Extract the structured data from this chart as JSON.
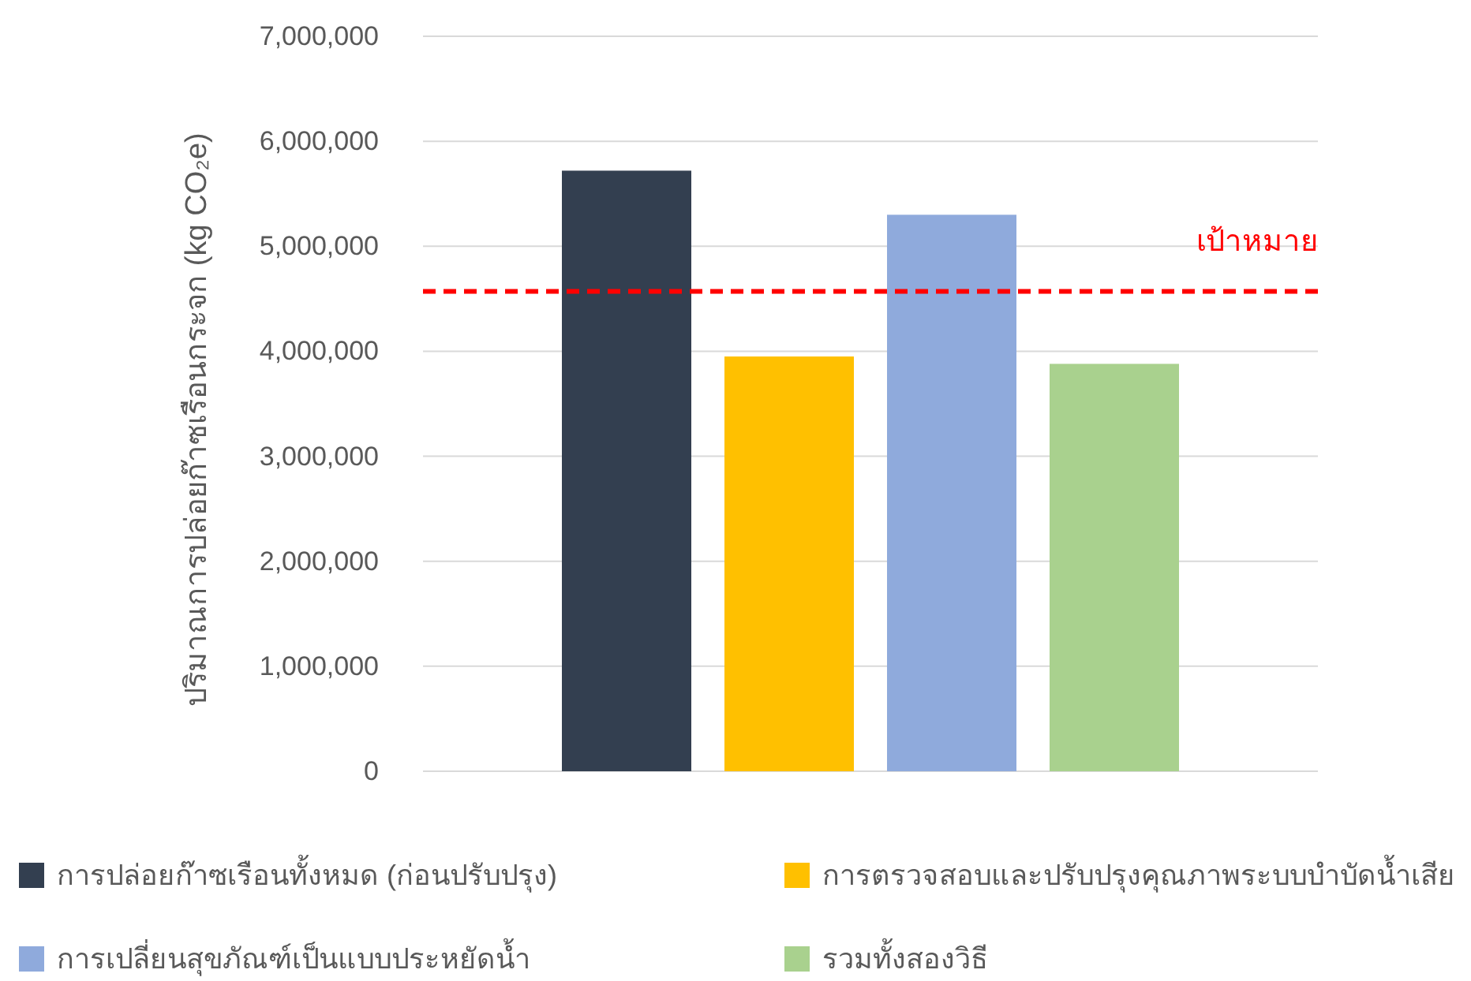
{
  "chart_data": {
    "type": "bar",
    "ylabel": "ปริมาณการปล่อยก๊าซเรือนกระจก (kg CO₂e)",
    "categories": [
      null
    ],
    "series": [
      {
        "name": "การปล่อยก๊าซเรือนทั้งหมด (ก่อนปรับปรุง)",
        "color": "#333f50",
        "values": [
          5720000
        ]
      },
      {
        "name": "การตรวจสอบและปรับปรุงคุณภาพระบบบำบัดน้ำเสีย",
        "color": "#ffc000",
        "values": [
          3950000
        ]
      },
      {
        "name": "การเปลี่ยนสุขภัณฑ์เป็นแบบประหยัดน้ำ",
        "color": "#8faadc",
        "values": [
          5300000
        ]
      },
      {
        "name": "รวมทั้งสองวิธี",
        "color": "#a9d18e",
        "values": [
          3880000
        ]
      }
    ],
    "ylim": [
      0,
      7000000
    ],
    "yticks": [
      0,
      {
        "value": 1000000,
        "label": "1,000,000"
      },
      {
        "value": 2000000,
        "label": "2,000,000"
      },
      {
        "value": 3000000,
        "label": "3,000,000"
      },
      {
        "value": 4000000,
        "label": "4,000,000"
      },
      {
        "value": 5000000,
        "label": "5,000,000"
      },
      {
        "value": 6000000,
        "label": "6,000,000"
      },
      {
        "value": 7000000,
        "label": "7,000,000"
      }
    ],
    "grid": "y",
    "ref_lines": [
      {
        "axis": "y",
        "value": 4570000,
        "label": "เป้าหมาย",
        "color": "#ff0000",
        "line_style": "dashed"
      }
    ],
    "legend": "bottom"
  }
}
